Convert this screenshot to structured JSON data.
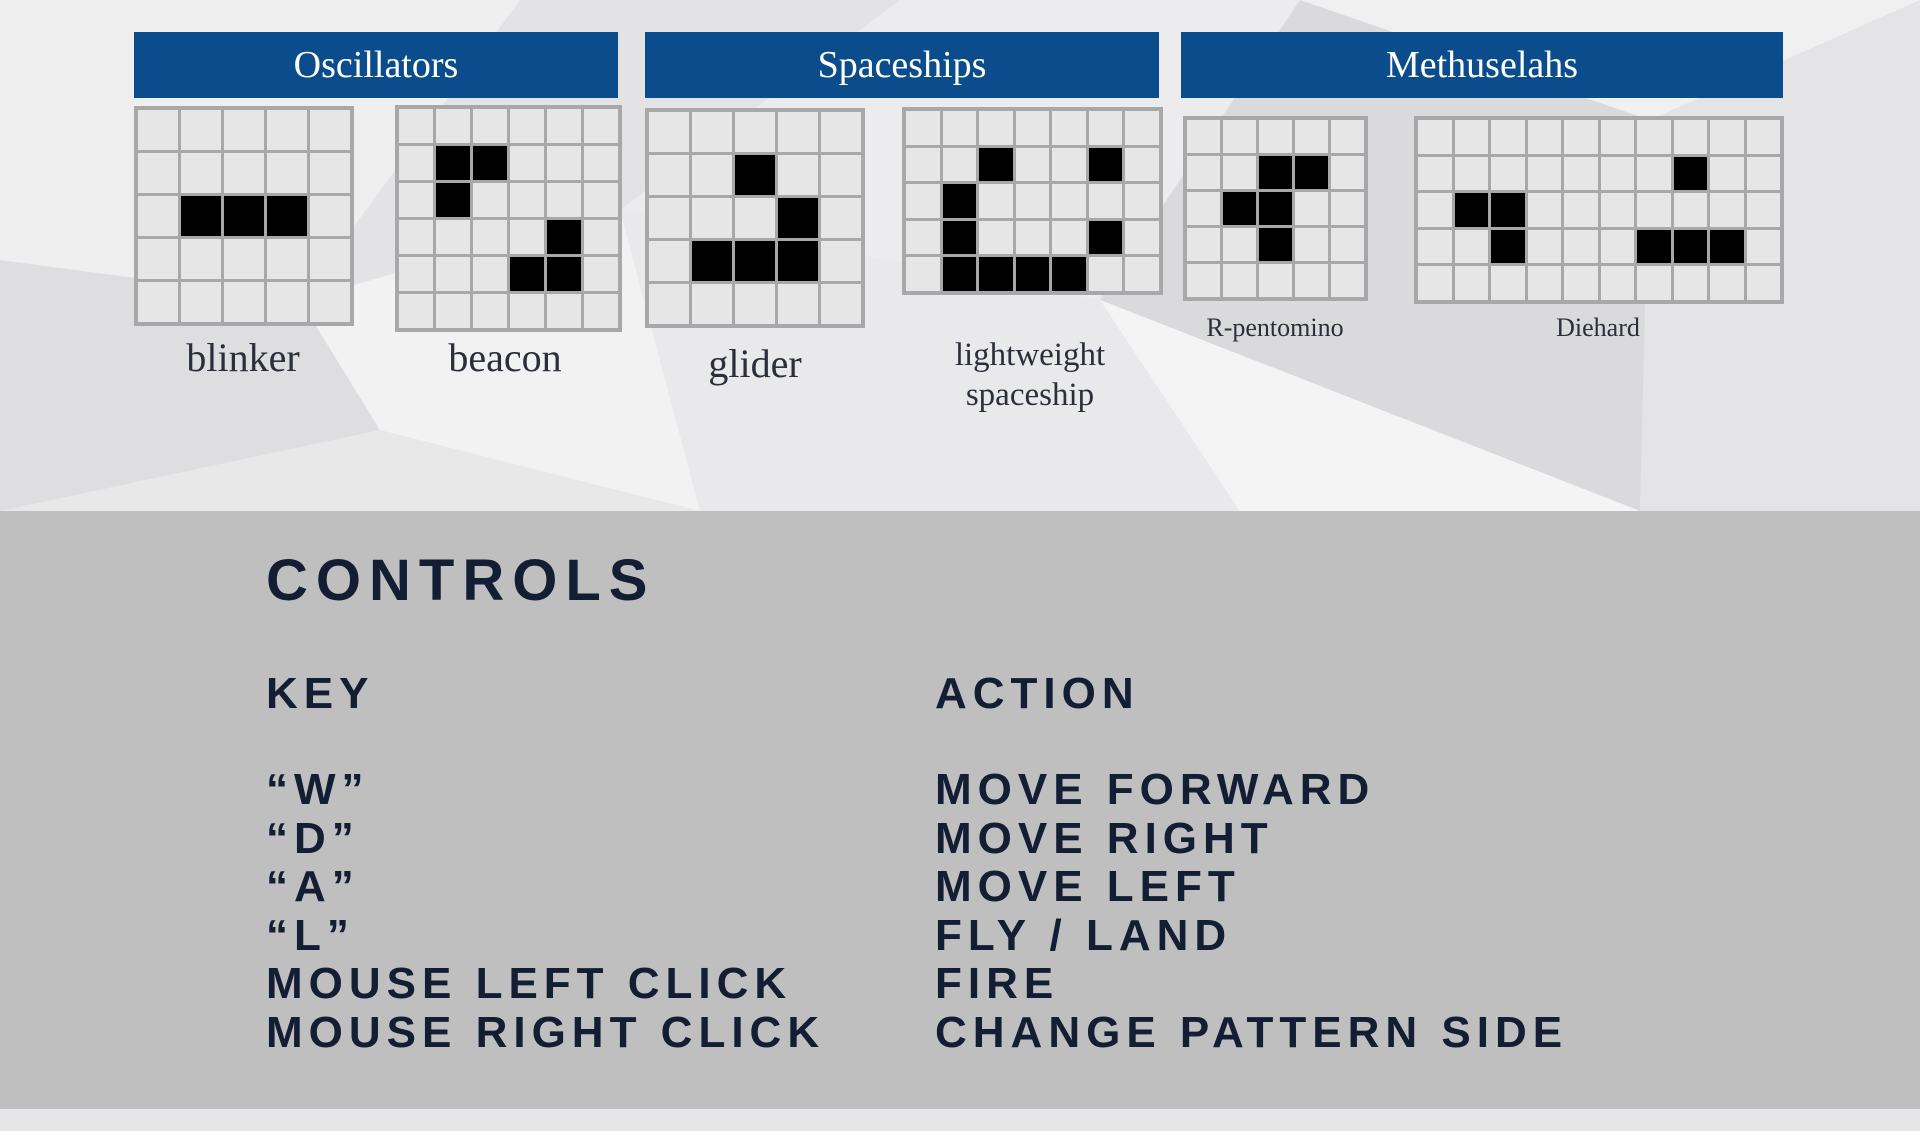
{
  "categories": [
    {
      "id": "oscillators",
      "title": "Oscillators"
    },
    {
      "id": "spaceships",
      "title": "Spaceships"
    },
    {
      "id": "methuselahs",
      "title": "Methuselahs"
    }
  ],
  "patterns": [
    {
      "id": "blinker",
      "label": "blinker",
      "cols": 5,
      "rows": 5,
      "alive": [
        [
          1,
          2
        ],
        [
          2,
          2
        ],
        [
          3,
          2
        ]
      ]
    },
    {
      "id": "beacon",
      "label": "beacon",
      "cols": 6,
      "rows": 6,
      "alive": [
        [
          1,
          1
        ],
        [
          2,
          1
        ],
        [
          1,
          2
        ],
        [
          4,
          3
        ],
        [
          3,
          4
        ],
        [
          4,
          4
        ]
      ]
    },
    {
      "id": "glider",
      "label": "glider",
      "cols": 5,
      "rows": 5,
      "alive": [
        [
          2,
          1
        ],
        [
          3,
          2
        ],
        [
          1,
          3
        ],
        [
          2,
          3
        ],
        [
          3,
          3
        ]
      ]
    },
    {
      "id": "lightweight-spaceship",
      "label": "lightweight\nspaceship",
      "cols": 7,
      "rows": 5,
      "alive": [
        [
          2,
          1
        ],
        [
          5,
          1
        ],
        [
          1,
          2
        ],
        [
          1,
          3
        ],
        [
          5,
          3
        ],
        [
          1,
          4
        ],
        [
          2,
          4
        ],
        [
          3,
          4
        ],
        [
          4,
          4
        ]
      ]
    },
    {
      "id": "r-pentomino",
      "label": "R-pentomino",
      "cols": 5,
      "rows": 5,
      "alive": [
        [
          2,
          1
        ],
        [
          3,
          1
        ],
        [
          1,
          2
        ],
        [
          2,
          2
        ],
        [
          2,
          3
        ]
      ]
    },
    {
      "id": "diehard",
      "label": "Diehard",
      "cols": 10,
      "rows": 5,
      "alive": [
        [
          7,
          1
        ],
        [
          1,
          2
        ],
        [
          2,
          2
        ],
        [
          2,
          3
        ],
        [
          6,
          3
        ],
        [
          7,
          3
        ],
        [
          8,
          3
        ]
      ]
    }
  ],
  "controls": {
    "title": "CONTROLS",
    "key_header": "KEY",
    "action_header": "ACTION",
    "rows": [
      {
        "key": "“W”",
        "action": "MOVE FORWARD"
      },
      {
        "key": "“D”",
        "action": "MOVE RIGHT"
      },
      {
        "key": "“A”",
        "action": "MOVE LEFT"
      },
      {
        "key": "“L”",
        "action": "FLY / LAND"
      },
      {
        "key": "MOUSE LEFT CLICK",
        "action": "FIRE"
      },
      {
        "key": "MOUSE RIGHT CLICK",
        "action": "CHANGE PATTERN SIDE"
      }
    ]
  },
  "colors": {
    "header_bg": "#0a4c8c",
    "alive_cell": "#000000",
    "dead_cell": "#e6e6e6",
    "grid_line": "#a8a8a8",
    "controls_bg": "#bfbfbf",
    "controls_text": "#131d33"
  }
}
